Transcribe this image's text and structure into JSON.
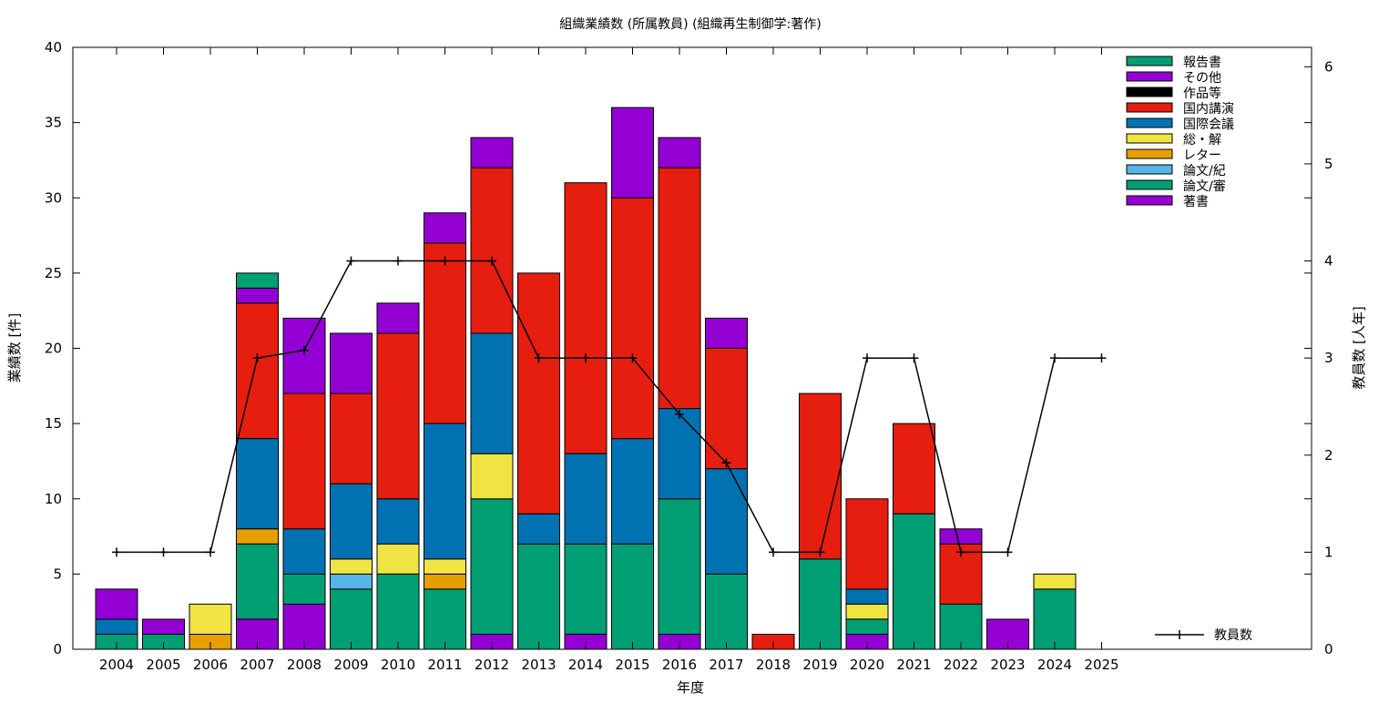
{
  "chart_data": {
    "type": "bar",
    "stacked": true,
    "title": "組織業績数 (所属教員) (組織再生制御学:著作)",
    "xlabel": "年度",
    "ylabel": "業績数 [件]",
    "y2label": "教員数 [人年]",
    "ylim": [
      0,
      40
    ],
    "y2lim": [
      0,
      6.2
    ],
    "yticks": [
      0,
      5,
      10,
      15,
      20,
      25,
      30,
      35,
      40
    ],
    "y2ticks": [
      0,
      1,
      2,
      3,
      4,
      5,
      6
    ],
    "categories": [
      "2004",
      "2005",
      "2006",
      "2007",
      "2008",
      "2009",
      "2010",
      "2011",
      "2012",
      "2013",
      "2014",
      "2015",
      "2016",
      "2017",
      "2018",
      "2019",
      "2020",
      "2021",
      "2022",
      "2023",
      "2024",
      "2025"
    ],
    "stack_order": [
      "著書",
      "論文/審",
      "論文/紀",
      "レター",
      "総・解",
      "国際会議",
      "国内講演",
      "作品等",
      "その他",
      "報告書"
    ],
    "legend_order": [
      "報告書",
      "その他",
      "作品等",
      "国内講演",
      "国際会議",
      "総・解",
      "レター",
      "論文/紀",
      "論文/審",
      "著書"
    ],
    "legend_placement": "top-right",
    "colors": {
      "著書": "#9400d3",
      "論文/審": "#009e73",
      "論文/紀": "#56b4e9",
      "レター": "#e69f00",
      "総・解": "#f0e442",
      "国際会議": "#0072b2",
      "国内講演": "#e51e10",
      "作品等": "#000000",
      "その他": "#9400d3",
      "報告書": "#009e73"
    },
    "series": [
      {
        "name": "著書",
        "values": [
          0,
          0,
          0,
          2,
          3,
          0,
          0,
          0,
          1,
          0,
          1,
          0,
          1,
          0,
          0,
          0,
          1,
          0,
          0,
          2,
          0,
          0
        ]
      },
      {
        "name": "論文/審",
        "values": [
          1,
          1,
          0,
          5,
          2,
          4,
          5,
          4,
          9,
          7,
          6,
          7,
          9,
          5,
          0,
          6,
          1,
          9,
          3,
          0,
          4,
          0
        ]
      },
      {
        "name": "論文/紀",
        "values": [
          0,
          0,
          0,
          0,
          0,
          1,
          0,
          0,
          0,
          0,
          0,
          0,
          0,
          0,
          0,
          0,
          0,
          0,
          0,
          0,
          0,
          0
        ]
      },
      {
        "name": "レター",
        "values": [
          0,
          0,
          1,
          1,
          0,
          0,
          0,
          1,
          0,
          0,
          0,
          0,
          0,
          0,
          0,
          0,
          0,
          0,
          0,
          0,
          0,
          0
        ]
      },
      {
        "name": "総・解",
        "values": [
          0,
          0,
          2,
          0,
          0,
          1,
          2,
          1,
          3,
          0,
          0,
          0,
          0,
          0,
          0,
          0,
          1,
          0,
          0,
          0,
          1,
          0
        ]
      },
      {
        "name": "国際会議",
        "values": [
          1,
          0,
          0,
          6,
          3,
          5,
          3,
          9,
          8,
          2,
          6,
          7,
          6,
          7,
          0,
          0,
          1,
          0,
          0,
          0,
          0,
          0
        ]
      },
      {
        "name": "国内講演",
        "values": [
          0,
          0,
          0,
          9,
          9,
          6,
          11,
          12,
          11,
          16,
          18,
          16,
          16,
          8,
          1,
          11,
          6,
          6,
          4,
          0,
          0,
          0
        ]
      },
      {
        "name": "作品等",
        "values": [
          0,
          0,
          0,
          0,
          0,
          0,
          0,
          0,
          0,
          0,
          0,
          0,
          0,
          0,
          0,
          0,
          0,
          0,
          0,
          0,
          0,
          0
        ]
      },
      {
        "name": "その他",
        "values": [
          2,
          1,
          0,
          1,
          5,
          4,
          2,
          2,
          2,
          0,
          0,
          6,
          2,
          2,
          0,
          0,
          0,
          0,
          1,
          0,
          0,
          0
        ]
      },
      {
        "name": "報告書",
        "values": [
          0,
          0,
          0,
          1,
          0,
          0,
          0,
          0,
          0,
          0,
          0,
          0,
          0,
          0,
          0,
          0,
          0,
          0,
          0,
          0,
          0,
          0
        ]
      }
    ],
    "line_series": {
      "name": "教員数",
      "axis": "y2",
      "color": "#000000",
      "values": [
        1,
        1,
        1,
        3,
        3.08,
        4,
        4,
        4,
        4,
        3,
        3,
        3,
        2.42,
        1.92,
        1,
        1,
        3,
        3,
        1,
        1,
        3,
        3
      ]
    },
    "line_legend_placement": "bottom-right",
    "grid": false
  }
}
